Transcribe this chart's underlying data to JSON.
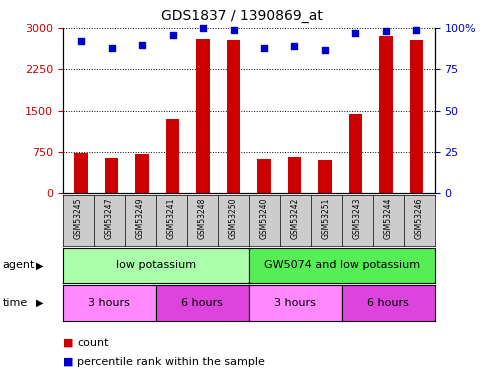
{
  "title": "GDS1837 / 1390869_at",
  "samples": [
    "GSM53245",
    "GSM53247",
    "GSM53249",
    "GSM53241",
    "GSM53248",
    "GSM53250",
    "GSM53240",
    "GSM53242",
    "GSM53251",
    "GSM53243",
    "GSM53244",
    "GSM53246"
  ],
  "counts": [
    730,
    630,
    710,
    1350,
    2800,
    2780,
    620,
    660,
    610,
    1440,
    2850,
    2780
  ],
  "percentiles": [
    92,
    88,
    90,
    96,
    100,
    99,
    88,
    89,
    87,
    97,
    98,
    99
  ],
  "ylim_left": [
    0,
    3000
  ],
  "ylim_right": [
    0,
    100
  ],
  "yticks_left": [
    0,
    750,
    1500,
    2250,
    3000
  ],
  "yticks_right": [
    0,
    25,
    50,
    75,
    100
  ],
  "bar_color": "#cc0000",
  "dot_color": "#0000cc",
  "agent_groups": [
    {
      "label": "low potassium",
      "start": 0,
      "end": 6,
      "color": "#aaffaa"
    },
    {
      "label": "GW5074 and low potassium",
      "start": 6,
      "end": 12,
      "color": "#55ee55"
    }
  ],
  "time_groups": [
    {
      "label": "3 hours",
      "start": 0,
      "end": 3,
      "color": "#ff88ff"
    },
    {
      "label": "6 hours",
      "start": 3,
      "end": 6,
      "color": "#dd44dd"
    },
    {
      "label": "3 hours",
      "start": 6,
      "end": 9,
      "color": "#ff88ff"
    },
    {
      "label": "6 hours",
      "start": 9,
      "end": 12,
      "color": "#dd44dd"
    }
  ],
  "legend_count_color": "#cc0000",
  "legend_dot_color": "#0000cc",
  "bg_color": "#ffffff",
  "plot_bg_color": "#ffffff",
  "grid_color": "#000000",
  "label_color_left": "#cc0000",
  "label_color_right": "#0000cc",
  "tick_label_bg": "#cccccc"
}
